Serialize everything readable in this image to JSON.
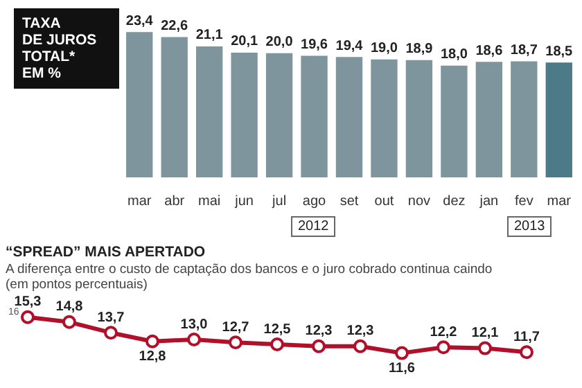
{
  "chart_data": [
    {
      "type": "bar",
      "title": "TAXA\nDE JUROS\nTOTAL*\nEM %",
      "categories": [
        "mar",
        "abr",
        "mai",
        "jun",
        "jul",
        "ago",
        "set",
        "out",
        "nov",
        "dez",
        "jan",
        "fev",
        "mar"
      ],
      "values": [
        23.4,
        22.6,
        21.1,
        20.1,
        20.0,
        19.6,
        19.4,
        19.0,
        18.9,
        18.0,
        18.6,
        18.7,
        18.5
      ],
      "value_labels": [
        "23,4",
        "22,6",
        "21,1",
        "20,1",
        "20,0",
        "19,6",
        "19,4",
        "19,0",
        "18,9",
        "18,0",
        "18,6",
        "18,7",
        "18,5"
      ],
      "colors": [
        "#7f959e",
        "#7f959e",
        "#7f959e",
        "#7f959e",
        "#7f959e",
        "#7f959e",
        "#7f959e",
        "#7f959e",
        "#7f959e",
        "#7f959e",
        "#7f959e",
        "#7f959e",
        "#4d7a87"
      ],
      "tick_labels": "x",
      "legend": false,
      "annotations": [
        "2012",
        "2013"
      ]
    },
    {
      "type": "line",
      "title": "“SPREAD” MAIS APERTADO",
      "subtitle": "A diferença entre o custo de captação dos bancos e o juro cobrado continua caindo\n(em pontos percentuais)",
      "categories": [
        null,
        null,
        null,
        null,
        null,
        null,
        null,
        null,
        null,
        null,
        null,
        null,
        null
      ],
      "series": [
        {
          "color": "#b0102a",
          "values": [
            15.3,
            14.8,
            13.7,
            12.8,
            13.0,
            12.7,
            12.5,
            12.3,
            12.3,
            11.6,
            12.2,
            12.1,
            11.7
          ],
          "value_labels": [
            "15,3",
            "14,8",
            "13,7",
            "12,8",
            "13,0",
            "12,7",
            "12,5",
            "12,3",
            "12,3",
            "11,6",
            "12,2",
            "12,1",
            "11,7"
          ]
        }
      ],
      "annotations": [
        "16"
      ],
      "tick_labels": false,
      "marker": "circle",
      "line_style": "solid",
      "legend": false
    }
  ]
}
